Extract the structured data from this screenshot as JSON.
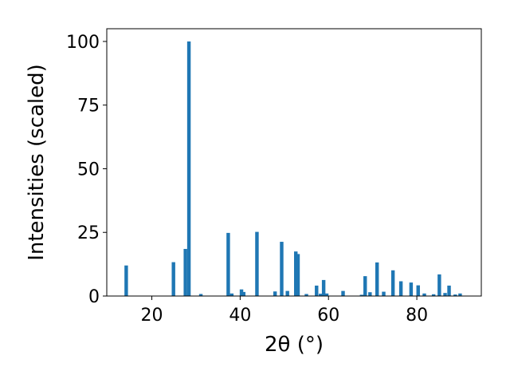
{
  "chart_data": {
    "type": "bar",
    "title": "",
    "xlabel": "2θ (°)",
    "ylabel": "Intensities (scaled)",
    "xlim": [
      9.8,
      94.6
    ],
    "ylim": [
      0,
      105
    ],
    "xticks": [
      20,
      40,
      60,
      80
    ],
    "yticks": [
      0,
      25,
      50,
      75,
      100
    ],
    "grid": false,
    "bar_color": "#1f77b4",
    "bar_width": 0.8,
    "series": [
      {
        "x": [
          14.2,
          24.9,
          27.6,
          28.4,
          31.1,
          37.3,
          38.1,
          40.3,
          40.8,
          43.8,
          47.9,
          49.4,
          50.7,
          52.6,
          53.1,
          55.0,
          57.3,
          58.2,
          58.9,
          59.6,
          63.3,
          67.5,
          68.3,
          69.4,
          71.0,
          72.5,
          74.6,
          76.4,
          78.7,
          80.3,
          81.7,
          83.8,
          85.1,
          86.4,
          87.3,
          88.7,
          89.8
        ],
        "y": [
          12,
          13.3,
          18.5,
          100,
          0.8,
          24.8,
          1,
          2.6,
          1.6,
          25.2,
          1.8,
          21.3,
          2,
          17.5,
          16.5,
          0.8,
          4.1,
          0.9,
          6.3,
          1,
          2,
          0.5,
          7.8,
          1.5,
          13.2,
          1.7,
          10.1,
          5.8,
          5.3,
          4.2,
          1,
          0.7,
          8.5,
          1.2,
          4.1,
          0.6,
          1
        ]
      }
    ]
  }
}
